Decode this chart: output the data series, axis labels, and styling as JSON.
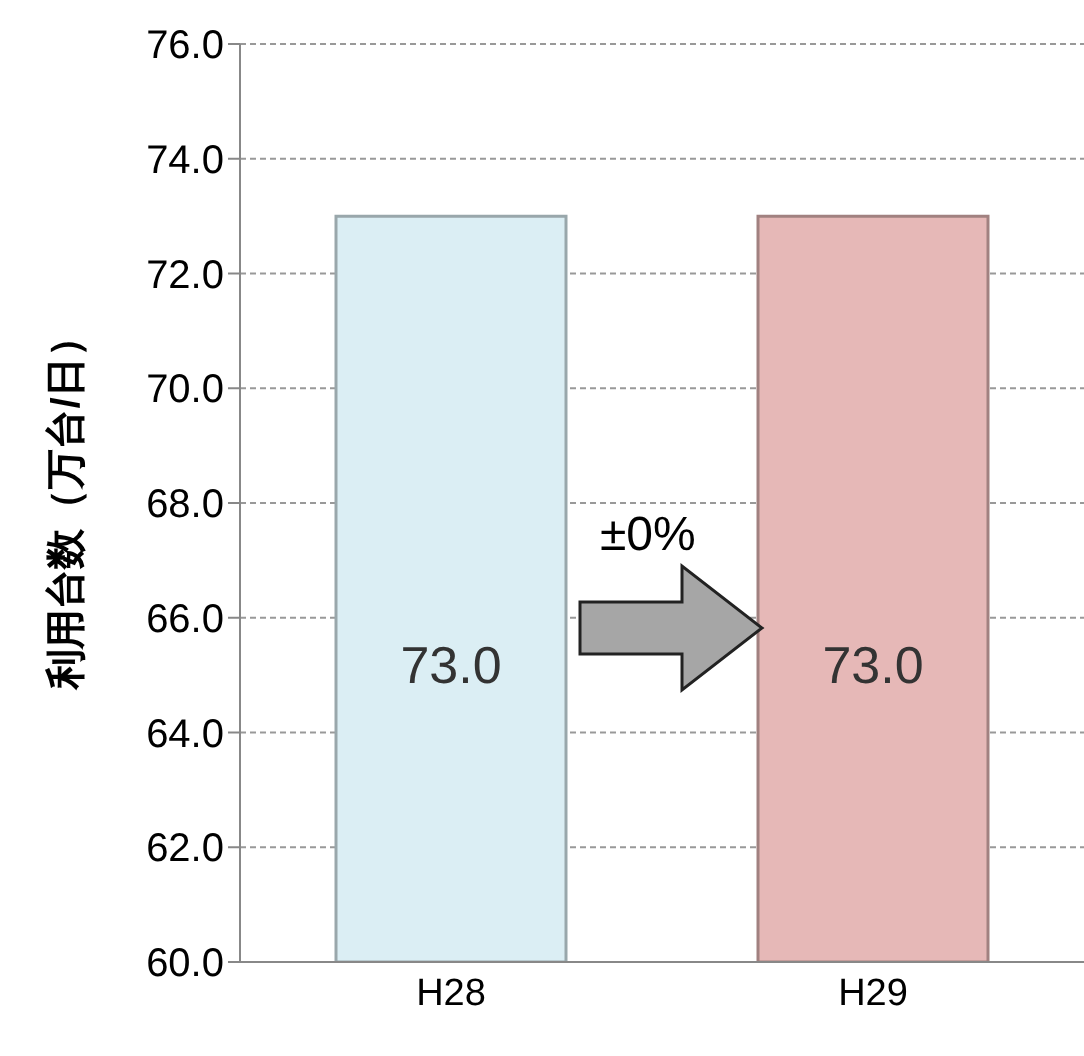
{
  "chart_data": {
    "type": "bar",
    "ylabel": "利用台数（万台/日）",
    "categories": [
      "H28",
      "H29"
    ],
    "values": [
      73.0,
      73.0
    ],
    "colors": [
      "#dbeef4",
      "#e6b8b7"
    ],
    "value_labels": [
      "73.0",
      "73.0"
    ],
    "ylim": [
      60,
      76
    ],
    "yticks": [
      {
        "value": 60,
        "label": "60.0"
      },
      {
        "value": 62,
        "label": "62.0"
      },
      {
        "value": 64,
        "label": "64.0"
      },
      {
        "value": 66,
        "label": "66.0"
      },
      {
        "value": 68,
        "label": "68.0"
      },
      {
        "value": 70,
        "label": "70.0"
      },
      {
        "value": 72,
        "label": "72.0"
      },
      {
        "value": 74,
        "label": "74.0"
      },
      {
        "value": 76,
        "label": "76.0"
      }
    ],
    "grid": "y",
    "legend": false,
    "annotations": [
      "±0%"
    ]
  }
}
